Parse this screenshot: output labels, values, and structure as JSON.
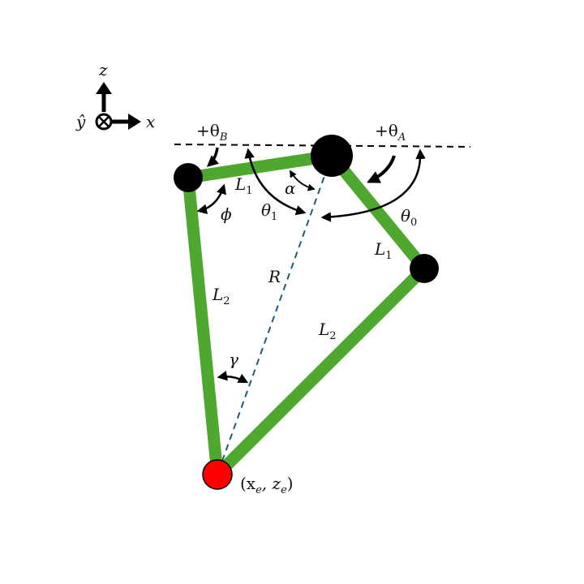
{
  "axes": {
    "z": "z",
    "x": "x",
    "y": "ŷ"
  },
  "labels": {
    "theta_B_sign": "+θ",
    "theta_B_sub": "B",
    "theta_A_sign": "+θ",
    "theta_A_sub": "A",
    "L1_left": "L",
    "L1_left_sub": "1",
    "L1_right": "L",
    "L1_right_sub": "1",
    "L2_left": "L",
    "L2_left_sub": "2",
    "L2_right": "L",
    "L2_right_sub": "2",
    "alpha": "α",
    "phi": "ϕ",
    "theta1": "θ",
    "theta1_sub": "1",
    "theta0": "θ",
    "theta0_sub": "0",
    "R": "R",
    "gamma": "γ",
    "end_effector": "(x",
    "end_effector_sub1": "e",
    "end_effector_mid": ", z",
    "end_effector_sub2": "e",
    "end_effector_close": ")"
  },
  "colors": {
    "link": "#4ea72e",
    "joint": "#000000",
    "end_effector": "#ff0000",
    "reach_line": "#1f5a7a",
    "text": "#111111"
  }
}
